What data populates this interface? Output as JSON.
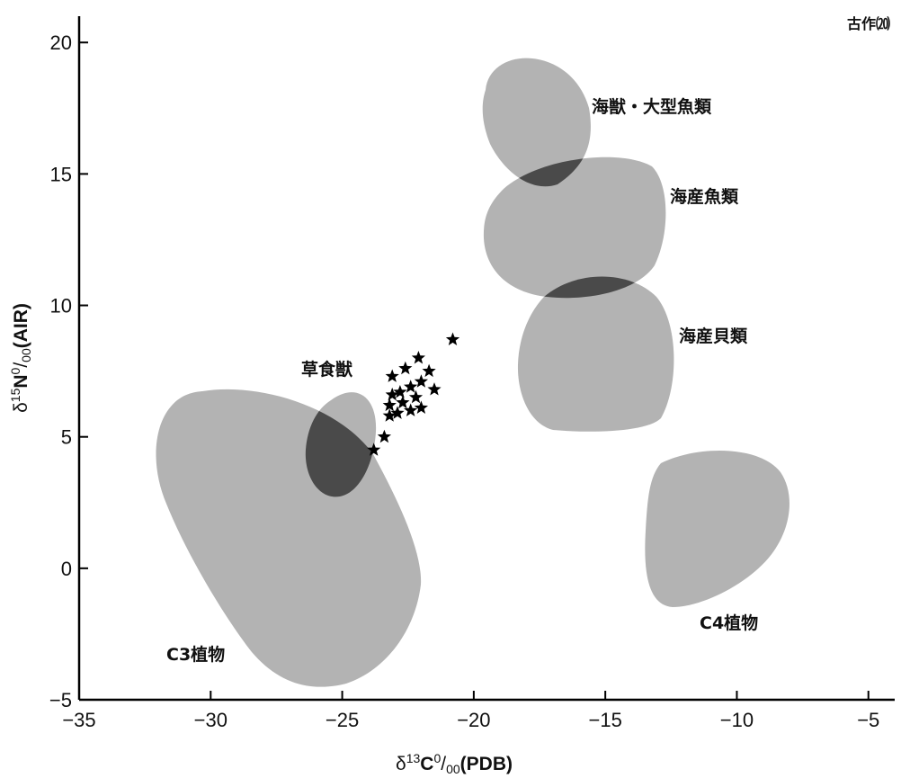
{
  "chart_data": {
    "type": "scatter",
    "title": "",
    "corner_note": "古作⒇",
    "xlabel": "δ13C‰(PDB)",
    "xlabel_parts": {
      "prefix": "δ",
      "sup": "13",
      "main": "C",
      "permil_sup": "0",
      "permil_sub": "00",
      "suffix": "(PDB)"
    },
    "ylabel": "δ15N‰(AIR)",
    "ylabel_parts": {
      "prefix": "δ",
      "sup": "15",
      "main": "N",
      "permil_sup": "0",
      "permil_sub": "00",
      "suffix": "(AIR)"
    },
    "xlim": [
      -35,
      -4
    ],
    "ylim": [
      -5,
      21
    ],
    "x_ticks": [
      -35,
      -30,
      -25,
      -20,
      -15,
      -10,
      -5
    ],
    "x_tick_labels": [
      "−35",
      "−30",
      "−25",
      "−20",
      "−15",
      "−10",
      "−5"
    ],
    "y_ticks": [
      -5,
      0,
      5,
      10,
      15,
      20
    ],
    "y_tick_labels": [
      "−5",
      "0",
      "5",
      "10",
      "15",
      "20"
    ],
    "grid": false,
    "series": [
      {
        "name": "草食獣",
        "marker": "star",
        "points": [
          [
            -20.8,
            8.7
          ],
          [
            -22.1,
            8.0
          ],
          [
            -22.6,
            7.6
          ],
          [
            -21.7,
            7.5
          ],
          [
            -23.1,
            7.3
          ],
          [
            -22.0,
            7.1
          ],
          [
            -22.4,
            6.9
          ],
          [
            -21.5,
            6.8
          ],
          [
            -22.8,
            6.7
          ],
          [
            -23.1,
            6.6
          ],
          [
            -22.2,
            6.5
          ],
          [
            -22.7,
            6.3
          ],
          [
            -23.2,
            6.2
          ],
          [
            -22.0,
            6.1
          ],
          [
            -22.4,
            6.0
          ],
          [
            -22.9,
            5.9
          ],
          [
            -23.2,
            5.8
          ],
          [
            -23.4,
            5.0
          ],
          [
            -23.8,
            4.5
          ]
        ]
      }
    ],
    "regions": [
      {
        "name": "C3植物",
        "label": "C3植物"
      },
      {
        "name": "草食獣",
        "label": "草食獣"
      },
      {
        "name": "海獣・大型魚類",
        "label": "海獣・大型魚類"
      },
      {
        "name": "海産魚類",
        "label": "海産魚類"
      },
      {
        "name": "海産貝類",
        "label": "海産貝類"
      },
      {
        "name": "C4植物",
        "label": "C4植物"
      }
    ],
    "colors": {
      "region_fill": "#b3b3b3",
      "region_overlap": "#4a4a4a",
      "axis": "#000000",
      "marker": "#000000"
    }
  }
}
